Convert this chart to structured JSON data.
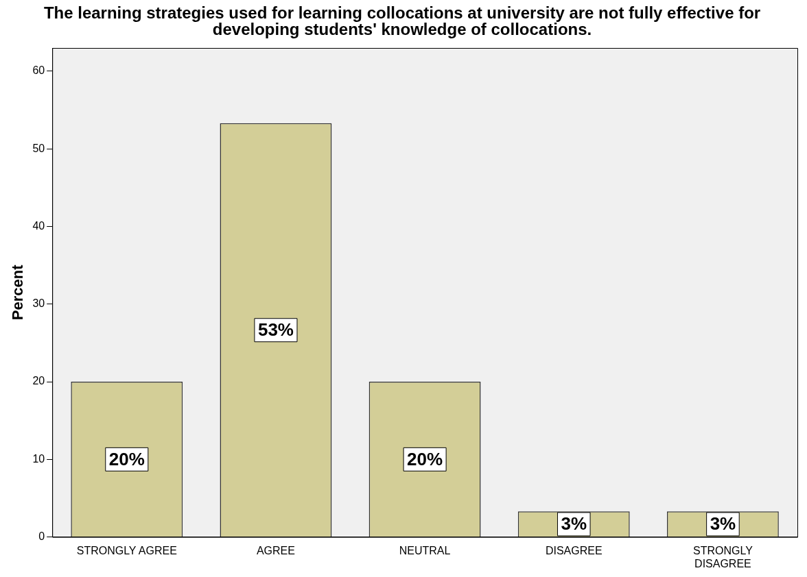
{
  "chart_data": {
    "type": "bar",
    "title": "The learning strategies used for learning collocations at university are not fully effective for developing students' knowledge of collocations.",
    "ylabel": "Percent",
    "categories": [
      "STRONGLY AGREE",
      "AGREE",
      "NEUTRAL",
      "DISAGREE",
      "STRONGLY DISAGREE"
    ],
    "values": [
      20,
      53.3,
      20,
      3.3,
      3.3
    ],
    "value_labels": [
      "20%",
      "53%",
      "20%",
      "3%",
      "3%"
    ],
    "color": "#d3ce97",
    "ylim": [
      0,
      63
    ],
    "yticks": [
      0,
      10,
      20,
      30,
      40,
      50,
      60
    ],
    "grid": false,
    "legend": false
  }
}
